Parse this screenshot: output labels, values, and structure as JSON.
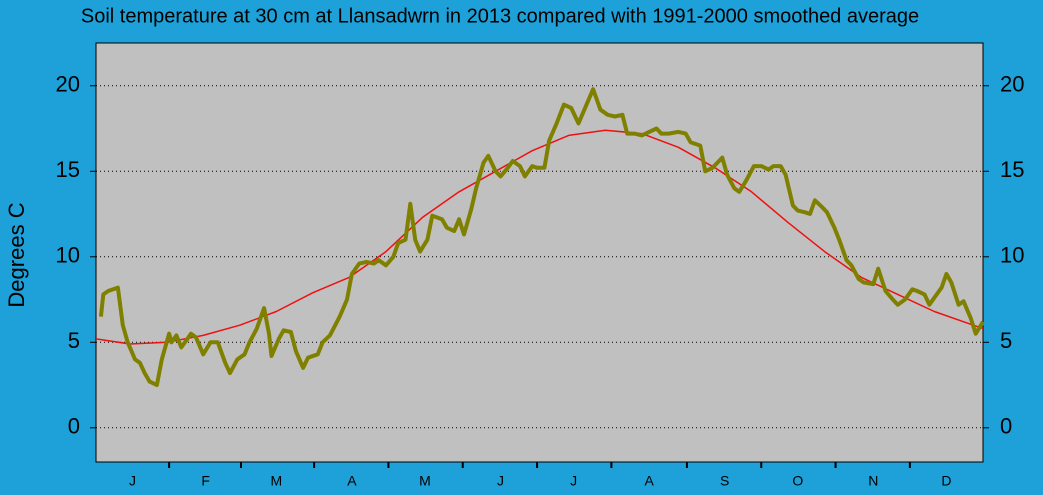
{
  "chart_data": {
    "type": "line",
    "title": "Soil temperature at 30 cm at Llansadwrn in 2013 compared with 1991-2000 smoothed average",
    "y_label": "Degrees  C",
    "xlim": [
      1,
      365
    ],
    "xticks": [
      {
        "value": 16,
        "label": "J"
      },
      {
        "value": 46,
        "label": "F"
      },
      {
        "value": 75,
        "label": "M"
      },
      {
        "value": 106,
        "label": "A"
      },
      {
        "value": 136,
        "label": "M"
      },
      {
        "value": 167,
        "label": "J"
      },
      {
        "value": 197,
        "label": "J"
      },
      {
        "value": 228,
        "label": "A"
      },
      {
        "value": 259,
        "label": "S"
      },
      {
        "value": 289,
        "label": "O"
      },
      {
        "value": 320,
        "label": "N"
      },
      {
        "value": 350,
        "label": "D"
      }
    ],
    "ylim": [
      -2,
      22.5
    ],
    "yticks": [
      0,
      5,
      10,
      15,
      20
    ],
    "y2lim": [
      -2,
      22.5
    ],
    "y2ticks": [
      0,
      5,
      10,
      15,
      20
    ],
    "grid": true,
    "series": [
      {
        "color": "#ee1111",
        "width": 1.5,
        "x": [
          1,
          15,
          30,
          45,
          60,
          75,
          90,
          105,
          120,
          135,
          150,
          165,
          180,
          195,
          210,
          225,
          240,
          255,
          270,
          285,
          300,
          315,
          330,
          345,
          365
        ],
        "values": [
          5.2,
          4.9,
          5.0,
          5.4,
          6.0,
          6.8,
          7.9,
          8.8,
          10.3,
          12.3,
          13.8,
          15.0,
          16.2,
          17.1,
          17.4,
          17.2,
          16.4,
          15.2,
          13.8,
          12.0,
          10.3,
          8.8,
          7.8,
          6.8,
          5.8
        ]
      },
      {
        "color": "#808000",
        "width": 4,
        "x": [
          3,
          4,
          6,
          10,
          12,
          14,
          17,
          19,
          21,
          23,
          26,
          28,
          31,
          32,
          34,
          36,
          40,
          42,
          45,
          48,
          51,
          54,
          56,
          59,
          62,
          64,
          67,
          70,
          72,
          73,
          76,
          78,
          81,
          83,
          86,
          88,
          92,
          94,
          97,
          101,
          104,
          106,
          109,
          112,
          115,
          117,
          120,
          123,
          125,
          128,
          130,
          132,
          134,
          137,
          139,
          143,
          145,
          148,
          150,
          152,
          155,
          157,
          160,
          162,
          165,
          167,
          170,
          172,
          175,
          177,
          180,
          182,
          185,
          187,
          190,
          193,
          196,
          199,
          202,
          205,
          208,
          211,
          214,
          217,
          219,
          222,
          225,
          228,
          231,
          233,
          236,
          240,
          243,
          245,
          249,
          251,
          254,
          258,
          260,
          263,
          265,
          268,
          271,
          274,
          277,
          279,
          282,
          284,
          287,
          289,
          292,
          294,
          296,
          299,
          301,
          304,
          306,
          309,
          311,
          314,
          316,
          320,
          322,
          325,
          328,
          330,
          333,
          336,
          338,
          341,
          343,
          346,
          348,
          350,
          352,
          355,
          357,
          360,
          362,
          365
        ],
        "values": [
          6.5,
          7.8,
          8.0,
          8.2,
          6.0,
          5.0,
          4.0,
          3.8,
          3.2,
          2.7,
          2.5,
          4.0,
          5.5,
          5.0,
          5.4,
          4.7,
          5.5,
          5.3,
          4.3,
          5.0,
          5.0,
          3.8,
          3.2,
          4.0,
          4.3,
          5.0,
          5.8,
          7.0,
          5.5,
          4.2,
          5.2,
          5.7,
          5.6,
          4.5,
          3.5,
          4.1,
          4.3,
          5.0,
          5.4,
          6.5,
          7.5,
          9.0,
          9.6,
          9.7,
          9.6,
          9.8,
          9.5,
          10.0,
          10.8,
          11.0,
          13.1,
          11.0,
          10.3,
          11.0,
          12.4,
          12.2,
          11.7,
          11.5,
          12.2,
          11.3,
          12.8,
          14.0,
          15.5,
          15.9,
          15.0,
          14.7,
          15.2,
          15.6,
          15.3,
          14.7,
          15.3,
          15.2,
          15.2,
          16.8,
          17.8,
          18.9,
          18.7,
          17.8,
          18.8,
          19.8,
          18.6,
          18.3,
          18.2,
          18.3,
          17.2,
          17.2,
          17.1,
          17.3,
          17.5,
          17.2,
          17.2,
          17.3,
          17.2,
          16.7,
          16.5,
          15.0,
          15.2,
          15.8,
          14.8,
          14.0,
          13.8,
          14.5,
          15.3,
          15.3,
          15.1,
          15.3,
          15.3,
          14.8,
          13.0,
          12.7,
          12.6,
          12.5,
          13.3,
          12.9,
          12.6,
          11.7,
          11.0,
          9.8,
          9.5,
          8.7,
          8.5,
          8.4,
          9.3,
          8.0,
          7.5,
          7.2,
          7.5,
          8.1,
          8.0,
          7.8,
          7.2,
          7.8,
          8.2,
          9.0,
          8.5,
          7.2,
          7.4,
          6.4,
          5.5,
          6.2
        ]
      }
    ]
  }
}
